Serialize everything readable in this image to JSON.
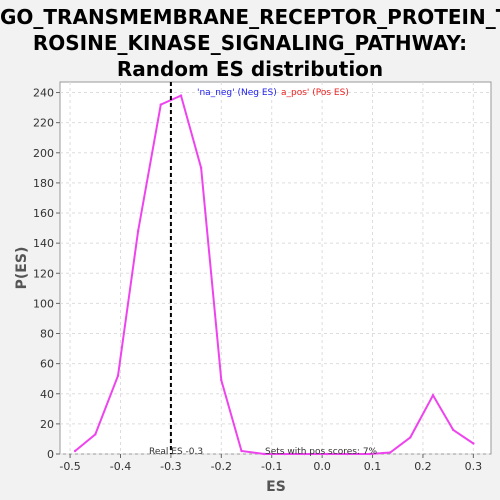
{
  "chart_data": {
    "type": "line",
    "title_lines": [
      "GO_TRANSMEMBRANE_RECEPTOR_PROTEIN_TY",
      "ROSINE_KINASE_SIGNALING_PATHWAY:",
      "Random ES distribution"
    ],
    "xlabel": "ES",
    "ylabel": "P(ES)",
    "xlim": [
      -0.52,
      0.335
    ],
    "ylim": [
      0,
      247
    ],
    "xticks": [
      -0.5,
      -0.4,
      -0.3,
      -0.2,
      -0.1,
      0.0,
      0.1,
      0.2,
      0.3
    ],
    "xtick_labels": [
      "-0.5",
      "-0.4",
      "-0.3",
      "-0.2",
      "-0.1",
      "0.0",
      "0.1",
      "0.2",
      "0.3"
    ],
    "yticks": [
      0,
      20,
      40,
      60,
      80,
      100,
      120,
      140,
      160,
      180,
      200,
      220,
      240
    ],
    "grid": true,
    "series": [
      {
        "name": "'na_neg' (Neg ES)",
        "color": "#2020ee",
        "x": [],
        "y": []
      },
      {
        "name": "'na_pos' (Pos ES)",
        "color": "#ee2020",
        "x": [],
        "y": []
      },
      {
        "color": "#ee44ee",
        "x": [
          -0.49,
          -0.45,
          -0.405,
          -0.365,
          -0.32,
          -0.28,
          -0.24,
          -0.2,
          -0.16,
          -0.115,
          -0.075,
          -0.035,
          0.01,
          0.05,
          0.095,
          0.135,
          0.175,
          0.22,
          0.26,
          0.3
        ],
        "y": [
          2,
          13,
          52,
          148,
          232,
          238,
          190,
          49,
          2,
          0,
          0,
          0,
          0,
          0,
          0,
          1,
          11,
          39,
          16,
          7
        ]
      }
    ],
    "legend_neg_label": "'na_neg' (Neg ES)",
    "legend_pos_label": "a_pos' (Pos ES)",
    "real_es": -0.3,
    "real_es_label": "Real ES -0.3",
    "annotation": "Sets with pos scores: 7%"
  }
}
